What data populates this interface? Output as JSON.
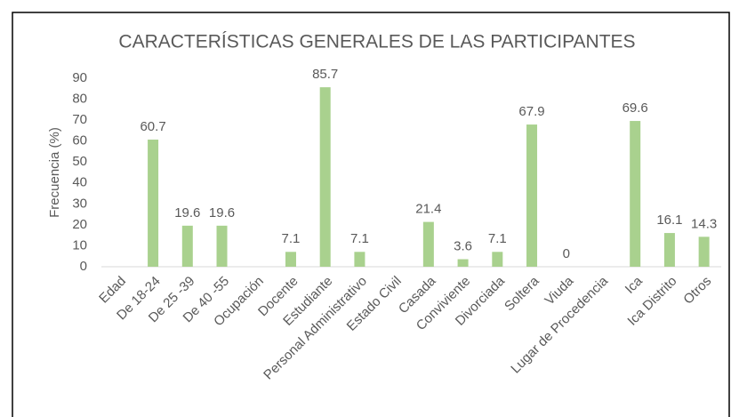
{
  "chart_data": {
    "type": "bar",
    "title": "CARACTERÍSTICAS GENERALES DE LAS PARTICIPANTES",
    "y_label": "Frecuencia (%)",
    "categories": [
      "Edad",
      "De 18-24",
      "De 25 -39",
      "De 40 -55",
      "Ocupación",
      "Docente",
      "Estudiante",
      "Personal Administrativo",
      "Estado Civil",
      "Casada",
      "Conviviente",
      "Divorciada",
      "Soltera",
      "Viuda",
      "Lugar de Procedencia",
      "Ica",
      "Ica Distrito",
      "Otros"
    ],
    "values": [
      null,
      60.7,
      19.6,
      19.6,
      null,
      7.1,
      85.7,
      7.1,
      null,
      21.4,
      3.6,
      7.1,
      67.9,
      0,
      null,
      69.6,
      16.1,
      14.3
    ],
    "color": "#a9d18e",
    "ylim": [
      0,
      90
    ],
    "yticks": [
      0,
      10,
      20,
      30,
      40,
      50,
      60,
      70,
      80,
      90
    ],
    "grid": false
  }
}
